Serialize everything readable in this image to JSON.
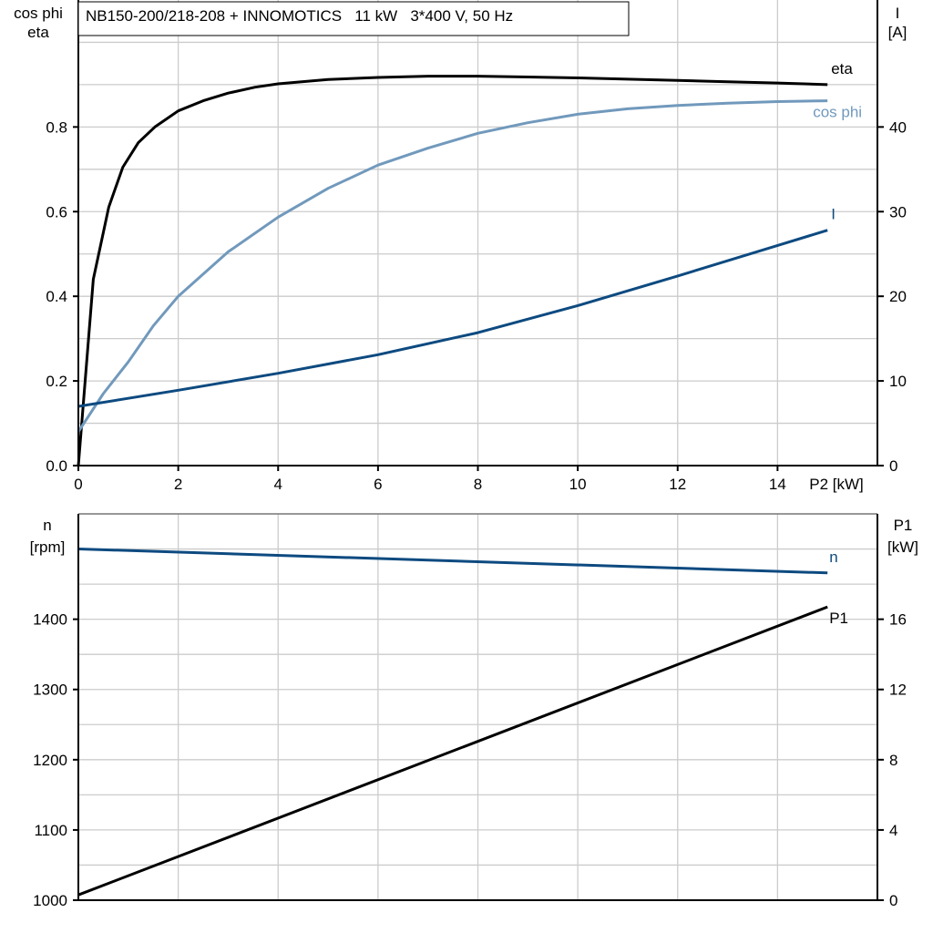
{
  "chart_data": [
    {
      "type": "line",
      "title": "NB150-200/218-208 + INNOMOTICS   11 kW   3*400 V, 50 Hz",
      "xlabel": "P2 [kW]",
      "ylabel_left": [
        "cos phi",
        "eta"
      ],
      "ylabel_right": [
        "I",
        "[A]"
      ],
      "xlim": [
        0,
        16
      ],
      "ylim_left": [
        0,
        1.1
      ],
      "ylim_right": [
        0,
        55
      ],
      "x_ticks": [
        0,
        2,
        4,
        6,
        8,
        10,
        12,
        14
      ],
      "y_ticks_left": [
        "0.0",
        "0.2",
        "0.4",
        "0.6",
        "0.8"
      ],
      "y_ticks_right": [
        "0",
        "10",
        "20",
        "30",
        "40"
      ],
      "grid": true,
      "series": [
        {
          "name": "eta",
          "axis": "left",
          "color": "#000000",
          "x": [
            0,
            0.3,
            0.61,
            0.89,
            1.2,
            1.53,
            2.0,
            2.5,
            3.0,
            3.54,
            4,
            5,
            6,
            7,
            8,
            9,
            10,
            11,
            12,
            13,
            14,
            15
          ],
          "y": [
            0,
            0.44,
            0.611,
            0.705,
            0.763,
            0.8,
            0.838,
            0.862,
            0.88,
            0.894,
            0.902,
            0.912,
            0.917,
            0.92,
            0.92,
            0.918,
            0.916,
            0.913,
            0.91,
            0.907,
            0.904,
            0.9
          ]
        },
        {
          "name": "cos phi",
          "axis": "left",
          "color": "#7199bc",
          "x": [
            0,
            0.5,
            1,
            1.5,
            2,
            3,
            4,
            5,
            6,
            7,
            8,
            9,
            10,
            11,
            12,
            13,
            14,
            15
          ],
          "y": [
            0.08,
            0.17,
            0.245,
            0.33,
            0.4,
            0.505,
            0.587,
            0.655,
            0.71,
            0.75,
            0.785,
            0.81,
            0.83,
            0.843,
            0.851,
            0.856,
            0.86,
            0.862
          ]
        },
        {
          "name": "I",
          "axis": "right",
          "color": "#0d4a80",
          "x": [
            0,
            2,
            4,
            6,
            8,
            10,
            12,
            14,
            15
          ],
          "y": [
            7.0,
            8.9,
            10.9,
            13.1,
            15.7,
            18.9,
            22.4,
            26.0,
            27.8
          ]
        }
      ]
    },
    {
      "type": "line",
      "xlim": [
        0,
        16
      ],
      "ylabel_left": [
        "n",
        "[rpm]"
      ],
      "ylabel_right": [
        "P1",
        "[kW]"
      ],
      "ylim_left": [
        1000,
        1550
      ],
      "ylim_right": [
        0,
        22
      ],
      "y_ticks_left": [
        "1000",
        "1100",
        "1200",
        "1300",
        "1400"
      ],
      "y_ticks_right": [
        "0",
        "4",
        "8",
        "12",
        "16"
      ],
      "grid": true,
      "series": [
        {
          "name": "n",
          "axis": "left",
          "color": "#0d4a80",
          "x": [
            0,
            15
          ],
          "y": [
            1500,
            1466
          ]
        },
        {
          "name": "P1",
          "axis": "right",
          "color": "#000000",
          "x": [
            0,
            15
          ],
          "y": [
            0.3,
            16.7
          ]
        }
      ]
    }
  ]
}
